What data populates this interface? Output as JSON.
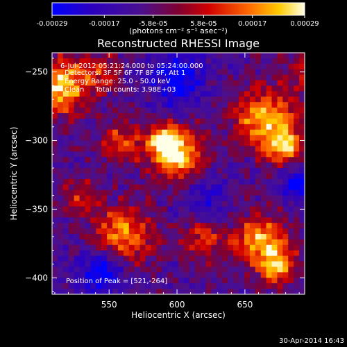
{
  "chart_data": {
    "type": "heatmap",
    "title": "Reconstructed RHESSI Image",
    "xlabel": "Heliocentric X (arcsec)",
    "ylabel": "Heliocentric Y (arcsec)",
    "xlim": [
      508,
      694
    ],
    "ylim": [
      -412,
      -236
    ],
    "xticks": [
      550,
      600,
      650
    ],
    "yticks": [
      -250,
      -300,
      -350,
      -400
    ],
    "colorbar": {
      "range": [
        -0.00029,
        0.00029
      ],
      "tick_values": [
        -0.00029,
        -0.00017,
        -5.8e-05,
        5.8e-05,
        0.00017,
        0.00029
      ],
      "tick_labels": [
        "-0.00029",
        "-0.00017",
        "-5.8e-05",
        "5.8e-05",
        "0.00017",
        "0.00029"
      ],
      "units": "(photons cm⁻² s⁻¹ asec⁻²)",
      "colormap": [
        "#0000ff",
        "#3a0070",
        "#5a1f8a",
        "#b00000",
        "#ff5a00",
        "#ffd000",
        "#ffffe0"
      ]
    },
    "info_lines": [
      "6-Jul-2012 05:21:24.000 to 05:24:00.000",
      "Detectors: 3F 5F 6F 7F 8F 9F, Att 1",
      "Energy Range: 25.0 - 50.0 keV",
      "Clean     Total counts: 3.98E+03"
    ],
    "peak_label": "Position of Peak = [521,-264]",
    "hotspots": [
      {
        "x": 515,
        "y": -260,
        "sigma": 14,
        "amp": 1.0
      },
      {
        "x": 600,
        "y": -310,
        "sigma": 14,
        "amp": 0.95
      },
      {
        "x": 590,
        "y": -300,
        "sigma": 8,
        "amp": 0.7
      },
      {
        "x": 665,
        "y": -285,
        "sigma": 16,
        "amp": 0.85
      },
      {
        "x": 680,
        "y": -305,
        "sigma": 10,
        "amp": 0.75
      },
      {
        "x": 558,
        "y": -300,
        "sigma": 11,
        "amp": 0.55
      },
      {
        "x": 560,
        "y": -370,
        "sigma": 15,
        "amp": 0.8
      },
      {
        "x": 660,
        "y": -372,
        "sigma": 14,
        "amp": 0.85
      },
      {
        "x": 675,
        "y": -392,
        "sigma": 10,
        "amp": 0.7
      },
      {
        "x": 620,
        "y": -370,
        "sigma": 12,
        "amp": 0.6
      },
      {
        "x": 530,
        "y": -340,
        "sigma": 10,
        "amp": 0.45
      },
      {
        "x": 640,
        "y": -340,
        "sigma": 10,
        "amp": 0.4
      },
      {
        "x": 545,
        "y": -250,
        "sigma": 9,
        "amp": 0.45
      },
      {
        "x": 690,
        "y": -250,
        "sigma": 10,
        "amp": 0.35
      }
    ],
    "coldspots": [
      {
        "x": 600,
        "y": -255,
        "sigma": 14,
        "amp": -0.6
      },
      {
        "x": 630,
        "y": -345,
        "sigma": 16,
        "amp": -0.5
      },
      {
        "x": 545,
        "y": -395,
        "sigma": 12,
        "amp": -0.7
      },
      {
        "x": 690,
        "y": -330,
        "sigma": 10,
        "amp": -0.55
      }
    ]
  },
  "footer_timestamp": "30-Apr-2014 16:43"
}
